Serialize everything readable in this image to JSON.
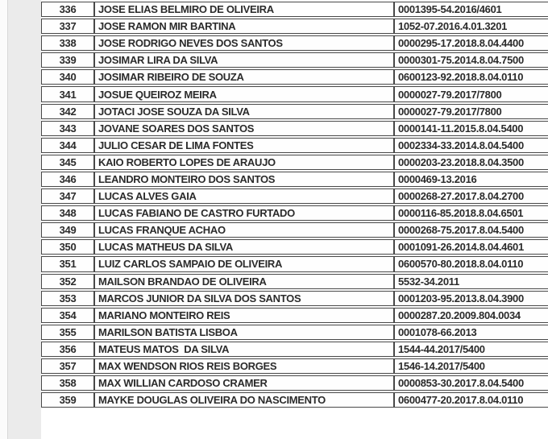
{
  "page": {
    "kind": "scanned-court-list-table",
    "background_color": "#ffffff",
    "gutter_color": "#ebebeb",
    "grid_border_color": "#484848",
    "text_color": "#2b2b2b"
  },
  "table": {
    "rows": [
      {
        "num": "336",
        "name": "JOSE ELIAS BELMIRO DE OLIVEIRA",
        "case": "0001395-54.2016/4601"
      },
      {
        "num": "337",
        "name": "JOSE RAMON MIR BARTINA",
        "case": "1052-07.2016.4.01.3201"
      },
      {
        "num": "338",
        "name": "JOSE RODRIGO NEVES DOS SANTOS",
        "case": "0000295-17.2018.8.04.4400"
      },
      {
        "num": "339",
        "name": "JOSIMAR LIRA DA SILVA",
        "case": "0000301-75.2014.8.04.7500"
      },
      {
        "num": "340",
        "name": "JOSIMAR RIBEIRO DE SOUZA",
        "case": "0600123-92.2018.8.04.0110"
      },
      {
        "num": "341",
        "name": "JOSUE QUEIROZ MEIRA",
        "case": "0000027-79.2017/7800"
      },
      {
        "num": "342",
        "name": "JOTACI JOSE SOUZA DA SILVA",
        "case": "0000027-79.2017/7800"
      },
      {
        "num": "343",
        "name": "JOVANE SOARES DOS SANTOS",
        "case": "0000141-11.2015.8.04.5400"
      },
      {
        "num": "344",
        "name": "JULIO CESAR DE LIMA FONTES",
        "case": "0002334-33.2014.8.04.5400"
      },
      {
        "num": "345",
        "name": "KAIO ROBERTO LOPES DE ARAUJO",
        "case": "0000203-23.2018.8.04.3500"
      },
      {
        "num": "346",
        "name": "LEANDRO MONTEIRO DOS SANTOS",
        "case": "0000469-13.2016"
      },
      {
        "num": "347",
        "name": "LUCAS ALVES GAIA",
        "case": "0000268-27.2017.8.04.2700"
      },
      {
        "num": "348",
        "name": "LUCAS FABIANO DE CASTRO FURTADO",
        "case": "0000116-85.2018.8.04.6501"
      },
      {
        "num": "349",
        "name": "LUCAS FRANQUE ACHAO",
        "case": "0000268-75.2017.8.04.5400"
      },
      {
        "num": "350",
        "name": "LUCAS MATHEUS DA SILVA",
        "case": "0001091-26.2014.8.04.4601"
      },
      {
        "num": "351",
        "name": "LUIZ CARLOS SAMPAIO DE OLIVEIRA",
        "case": "0600570-80.2018.8.04.0110"
      },
      {
        "num": "352",
        "name": "MAILSON BRANDAO DE OLIVEIRA",
        "case": "5532-34.2011"
      },
      {
        "num": "353",
        "name": "MARCOS JUNIOR DA SILVA DOS SANTOS",
        "case": "0001203-95.2013.8.04.3900"
      },
      {
        "num": "354",
        "name": "MARIANO MONTEIRO REIS",
        "case": "0000287.20.2009.804.0034"
      },
      {
        "num": "355",
        "name": "MARILSON BATISTA LISBOA",
        "case": "0001078-66.2013"
      },
      {
        "num": "356",
        "name": "MATEUS MATOS  DA SILVA",
        "case": "1544-44.2017/5400"
      },
      {
        "num": "357",
        "name": "MAX WENDSON RIOS REIS BORGES",
        "case": "1546-14.2017/5400"
      },
      {
        "num": "358",
        "name": "MAX WILLIAN CARDOSO CRAMER",
        "case": "0000853-30.2017.8.04.5400"
      },
      {
        "num": "359",
        "name": "MAYKE DOUGLAS OLIVEIRA DO NASCIMENTO",
        "case": "0600477-20.2017.8.04.0110"
      }
    ]
  }
}
